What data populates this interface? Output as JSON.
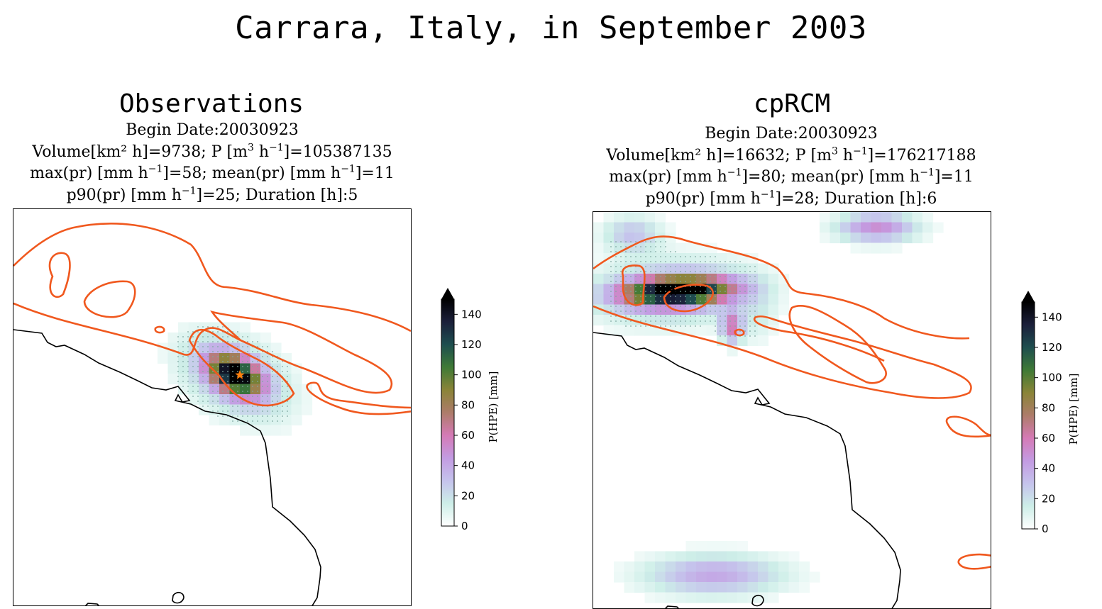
{
  "suptitle": "Carrara, Italy, in September 2003",
  "colorbar": {
    "label": "P(HPE) [mm]",
    "ticks": [
      "0",
      "20",
      "40",
      "60",
      "80",
      "100",
      "120",
      "140"
    ],
    "stops": [
      "#ffffff",
      "#cdeee8",
      "#c5c3ec",
      "#c39be2",
      "#d57ab6",
      "#ad7c6a",
      "#8a8438",
      "#3f7a36",
      "#1e4e4f",
      "#1b1f3a",
      "#000000"
    ]
  },
  "contour_color": "#f0581e",
  "marker_colors": {
    "obs": "#ff7f0e",
    "model": "#9b59b6"
  },
  "panels": [
    {
      "title": "Observations",
      "begin": "Begin Date:20030923",
      "volume_prefix": "Volume[km² h]=9738;  P [m",
      "volume_mid": "3",
      "volume_mid2": " h",
      "volume_exp": "−1",
      "volume_suffix": "]=105387135",
      "max_prefix": "max(pr) [mm h",
      "max_exp": "−1",
      "max_mid": "]=58;  mean(pr) [mm h",
      "max_exp2": "−1",
      "max_suffix": "]=11",
      "p90_prefix": "p90(pr) [mm h",
      "p90_exp": "−1",
      "p90_suffix": "]=25;  Duration [h]:5"
    },
    {
      "title": "cpRCM",
      "begin": "Begin Date:20030923",
      "volume_prefix": "Volume[km² h]=16632;  P [m",
      "volume_mid": "3",
      "volume_mid2": " h",
      "volume_exp": "−1",
      "volume_suffix": "]=176217188",
      "max_prefix": "max(pr) [mm h",
      "max_exp": "−1",
      "max_mid": "]=80;  mean(pr) [mm h",
      "max_exp2": "−1",
      "max_suffix": "]=11",
      "p90_prefix": "p90(pr) [mm h",
      "p90_exp": "−1",
      "p90_suffix": "]=28;  Duration [h]:6"
    }
  ],
  "chart_data": [
    {
      "type": "heatmap",
      "title": "Observations",
      "colorbar_label": "P(HPE) [mm]",
      "colorbar_range": [
        0,
        150
      ],
      "max_pr": 58,
      "mean_pr": 11,
      "p90_pr": 25,
      "duration_h": 5,
      "volume": 9738,
      "P": 105387135,
      "blobs": [
        {
          "name": "core",
          "peak_value": 130
        },
        {
          "name": "halo",
          "peak_value": 40
        }
      ]
    },
    {
      "type": "heatmap",
      "title": "cpRCM",
      "colorbar_label": "P(HPE) [mm]",
      "colorbar_range": [
        0,
        150
      ],
      "max_pr": 80,
      "mean_pr": 11,
      "p90_pr": 28,
      "duration_h": 6,
      "volume": 16632,
      "P": 176217188,
      "blobs": [
        {
          "name": "core",
          "peak_value": 145
        },
        {
          "name": "north-east",
          "peak_value": 50
        },
        {
          "name": "south",
          "peak_value": 40
        }
      ]
    }
  ]
}
